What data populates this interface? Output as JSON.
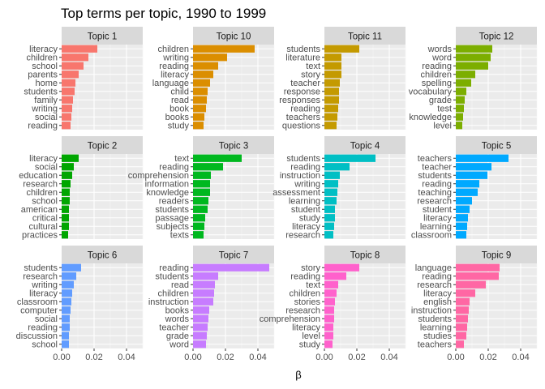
{
  "title": "Top terms per topic, 1990 to 1999",
  "chart_data": {
    "type": "bar",
    "orientation": "horizontal",
    "facet": "wrap",
    "facet_columns": 4,
    "scales": "free_y",
    "title": "Top terms per topic, 1990 to 1999",
    "xlabel": "β",
    "ylabel": "",
    "xlim": [
      0,
      0.05
    ],
    "x_ticks": [
      0,
      0.02,
      0.04
    ],
    "x_tick_labels": [
      "0.00",
      "0.02",
      "0.04"
    ],
    "grid": true,
    "legend": "none",
    "panels": [
      {
        "label": "Topic 1",
        "color": "#F8766D",
        "terms": [
          "literacy",
          "children",
          "school",
          "parents",
          "home",
          "students",
          "family",
          "writing",
          "social",
          "reading"
        ],
        "values": [
          0.022,
          0.0165,
          0.0135,
          0.0105,
          0.0085,
          0.008,
          0.007,
          0.0065,
          0.006,
          0.0055
        ]
      },
      {
        "label": "Topic 10",
        "color": "#DB8E00",
        "terms": [
          "children",
          "writing",
          "reading",
          "literacy",
          "language",
          "child",
          "read",
          "book",
          "books",
          "study"
        ],
        "values": [
          0.038,
          0.021,
          0.0155,
          0.0125,
          0.0105,
          0.009,
          0.0085,
          0.008,
          0.007,
          0.0065
        ]
      },
      {
        "label": "Topic 11",
        "color": "#C49A00",
        "terms": [
          "students",
          "literature",
          "text",
          "story",
          "teacher",
          "response",
          "responses",
          "reading",
          "teachers",
          "questions"
        ],
        "values": [
          0.0215,
          0.0105,
          0.0105,
          0.0105,
          0.0095,
          0.009,
          0.009,
          0.0085,
          0.008,
          0.0075
        ]
      },
      {
        "label": "Topic 12",
        "color": "#7CAE00",
        "terms": [
          "words",
          "word",
          "reading",
          "children",
          "spelling",
          "vocabulary",
          "grade",
          "test",
          "knowledge",
          "level"
        ],
        "values": [
          0.0225,
          0.0215,
          0.02,
          0.012,
          0.0095,
          0.0065,
          0.0055,
          0.005,
          0.0045,
          0.004
        ]
      },
      {
        "label": "Topic 2",
        "color": "#00A600",
        "terms": [
          "literacy",
          "social",
          "education",
          "research",
          "children",
          "school",
          "american",
          "critical",
          "cultural",
          "practices"
        ],
        "values": [
          0.0105,
          0.0075,
          0.0065,
          0.0055,
          0.005,
          0.005,
          0.0045,
          0.0045,
          0.0045,
          0.004
        ]
      },
      {
        "label": "Topic 3",
        "color": "#00B81F",
        "terms": [
          "text",
          "reading",
          "comprehension",
          "information",
          "knowledge",
          "readers",
          "students",
          "passage",
          "subjects",
          "texts"
        ],
        "values": [
          0.03,
          0.0185,
          0.011,
          0.0105,
          0.0105,
          0.0095,
          0.009,
          0.0075,
          0.007,
          0.0065
        ]
      },
      {
        "label": "Topic 4",
        "color": "#00BFC4",
        "terms": [
          "students",
          "reading",
          "instruction",
          "writing",
          "assessment",
          "learning",
          "student",
          "study",
          "literacy",
          "research"
        ],
        "values": [
          0.0315,
          0.0155,
          0.0095,
          0.0085,
          0.008,
          0.0075,
          0.0065,
          0.0065,
          0.006,
          0.0055
        ]
      },
      {
        "label": "Topic 5",
        "color": "#00A9FF",
        "terms": [
          "teachers",
          "teacher",
          "students",
          "reading",
          "teaching",
          "research",
          "student",
          "literacy",
          "learning",
          "classroom"
        ],
        "values": [
          0.0325,
          0.022,
          0.0195,
          0.0145,
          0.0135,
          0.01,
          0.0085,
          0.0075,
          0.007,
          0.0065
        ]
      },
      {
        "label": "Topic 6",
        "color": "#619CFF",
        "terms": [
          "students",
          "research",
          "writing",
          "literacy",
          "classroom",
          "computer",
          "social",
          "reading",
          "discussion",
          "school"
        ],
        "values": [
          0.012,
          0.009,
          0.0075,
          0.0065,
          0.006,
          0.0055,
          0.005,
          0.005,
          0.0045,
          0.0045
        ]
      },
      {
        "label": "Topic 7",
        "color": "#C77CFF",
        "terms": [
          "reading",
          "students",
          "read",
          "children",
          "instruction",
          "books",
          "words",
          "teacher",
          "grade",
          "word"
        ],
        "values": [
          0.047,
          0.0155,
          0.0135,
          0.013,
          0.0125,
          0.01,
          0.0095,
          0.009,
          0.0085,
          0.008
        ]
      },
      {
        "label": "Topic 8",
        "color": "#FF61CC",
        "terms": [
          "story",
          "reading",
          "text",
          "children",
          "stories",
          "research",
          "comprehension",
          "literacy",
          "level",
          "study"
        ],
        "values": [
          0.0215,
          0.0135,
          0.0085,
          0.0075,
          0.0065,
          0.006,
          0.006,
          0.0055,
          0.0055,
          0.005
        ]
      },
      {
        "label": "Topic 9",
        "color": "#FF67A4",
        "terms": [
          "language",
          "reading",
          "research",
          "literacy",
          "english",
          "instruction",
          "students",
          "learning",
          "studies",
          "teachers"
        ],
        "values": [
          0.027,
          0.0265,
          0.0185,
          0.012,
          0.0085,
          0.008,
          0.0075,
          0.007,
          0.0065,
          0.005
        ]
      }
    ]
  }
}
